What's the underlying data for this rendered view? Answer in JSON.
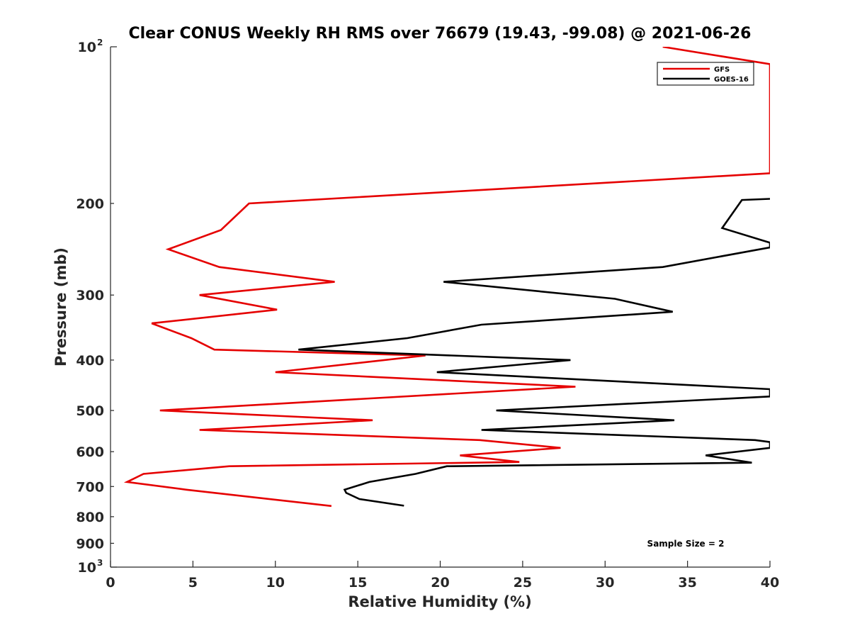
{
  "chart_data": {
    "type": "line",
    "title": "Clear CONUS Weekly RH RMS over 76679 (19.43, -99.08) @ 2021-06-26",
    "xlabel": "Relative Humidity (%)",
    "ylabel": "Pressure (mb)",
    "xlim": [
      0,
      40
    ],
    "ylim": [
      100,
      1000
    ],
    "y_scale": "log",
    "y_reversed": true,
    "x_ticks": [
      "0",
      "5",
      "10",
      "15",
      "20",
      "25",
      "30",
      "35",
      "40"
    ],
    "y_ticks": [
      {
        "value": 100,
        "base": "10",
        "exp": "2"
      },
      {
        "value": 200,
        "label": "200"
      },
      {
        "value": 300,
        "label": "300"
      },
      {
        "value": 400,
        "label": "400"
      },
      {
        "value": 500,
        "label": "500"
      },
      {
        "value": 600,
        "label": "600"
      },
      {
        "value": 700,
        "label": "700"
      },
      {
        "value": 800,
        "label": "800"
      },
      {
        "value": 900,
        "label": "900"
      },
      {
        "value": 1000,
        "base": "10",
        "exp": "3"
      }
    ],
    "legend_position": "top-right",
    "grid": false,
    "annotation": "Sample Size = 2",
    "series": [
      {
        "name": "GFS",
        "color": "#e50000",
        "points": [
          [
            33.5,
            100
          ],
          [
            40.0,
            108
          ],
          [
            40.0,
            175
          ],
          [
            8.4,
            200
          ],
          [
            6.7,
            225
          ],
          [
            3.5,
            245
          ],
          [
            6.6,
            265
          ],
          [
            13.6,
            283
          ],
          [
            5.4,
            300
          ],
          [
            10.1,
            320
          ],
          [
            2.5,
            340
          ],
          [
            4.9,
            363
          ],
          [
            6.3,
            382
          ],
          [
            19.1,
            392
          ],
          [
            10.0,
            422
          ],
          [
            28.2,
            450
          ],
          [
            3.0,
            500
          ],
          [
            15.9,
            522
          ],
          [
            5.4,
            545
          ],
          [
            22.4,
            570
          ],
          [
            27.3,
            590
          ],
          [
            21.2,
            610
          ],
          [
            24.8,
            628
          ],
          [
            7.2,
            640
          ],
          [
            2.0,
            662
          ],
          [
            1.0,
            686
          ],
          [
            4.6,
            710
          ],
          [
            13.4,
            763
          ]
        ]
      },
      {
        "name": "GOES-16",
        "color": "#000000",
        "points": [
          [
            40.0,
            196
          ],
          [
            38.3,
            197
          ],
          [
            37.1,
            223
          ],
          [
            40.0,
            238
          ],
          [
            40.0,
            243
          ],
          [
            33.5,
            265
          ],
          [
            20.2,
            283
          ],
          [
            30.6,
            305
          ],
          [
            34.1,
            323
          ],
          [
            22.5,
            342
          ],
          [
            18.0,
            363
          ],
          [
            11.4,
            382
          ],
          [
            27.9,
            400
          ],
          [
            19.8,
            422
          ],
          [
            40.0,
            455
          ],
          [
            40.0,
            470
          ],
          [
            23.4,
            500
          ],
          [
            34.2,
            522
          ],
          [
            22.5,
            545
          ],
          [
            39.1,
            570
          ],
          [
            40.0,
            575
          ],
          [
            40.0,
            590
          ],
          [
            36.1,
            610
          ],
          [
            38.9,
            630
          ],
          [
            20.4,
            640
          ],
          [
            18.5,
            662
          ],
          [
            15.7,
            686
          ],
          [
            14.2,
            710
          ],
          [
            14.3,
            720
          ],
          [
            15.1,
            740
          ],
          [
            17.8,
            762
          ]
        ]
      }
    ]
  }
}
